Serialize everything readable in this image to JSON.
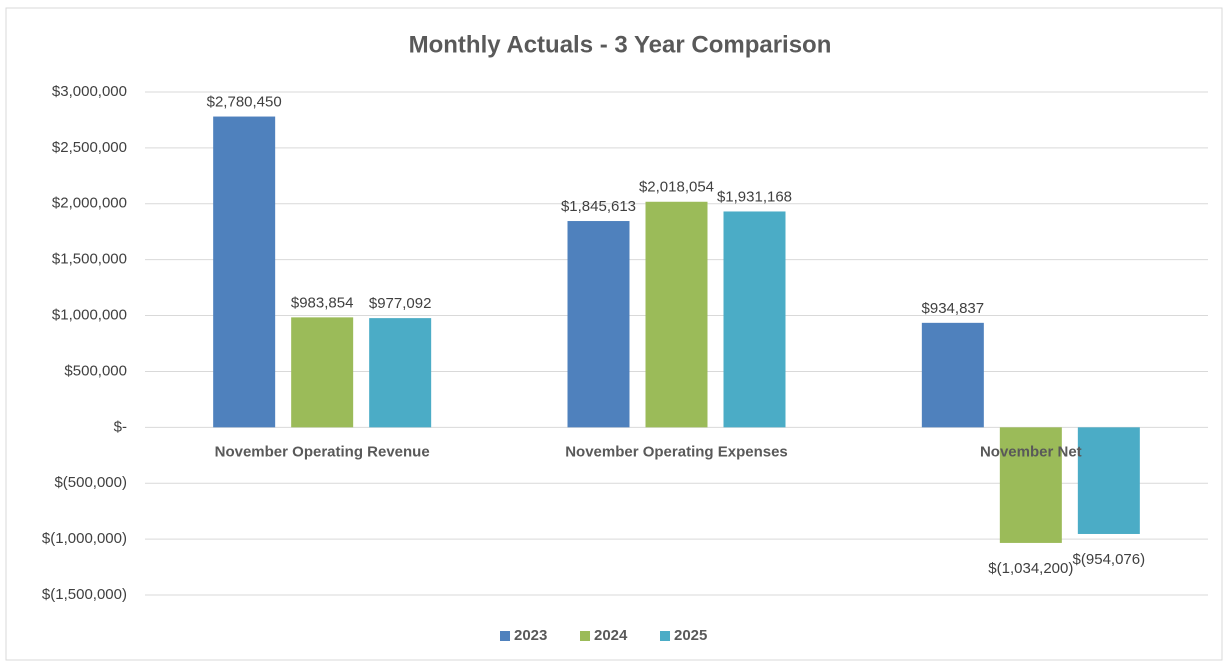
{
  "chart_data": {
    "type": "bar",
    "title": "Monthly Actuals - 3 Year Comparison",
    "categories": [
      "November Operating Revenue",
      "November Operating Expenses",
      "November Net"
    ],
    "series": [
      {
        "name": "2023",
        "color": "#4f81bd",
        "values": [
          2780450,
          1845613,
          934837
        ],
        "value_labels": [
          "$2,780,450",
          "$1,845,613",
          "$934,837"
        ]
      },
      {
        "name": "2024",
        "color": "#9bbb59",
        "values": [
          983854,
          2018054,
          -1034200
        ],
        "value_labels": [
          "$983,854",
          "$2,018,054",
          "$(1,034,200)"
        ]
      },
      {
        "name": "2025",
        "color": "#4bacc6",
        "values": [
          977092,
          1931168,
          -954076
        ],
        "value_labels": [
          "$977,092",
          "$1,931,168",
          "$(954,076)"
        ]
      }
    ],
    "ylim": [
      -1500000,
      3000000
    ],
    "yticks": [
      {
        "value": -1500000,
        "label": "$(1,500,000)"
      },
      {
        "value": -1000000,
        "label": "$(1,000,000)"
      },
      {
        "value": -500000,
        "label": "$(500,000)"
      },
      {
        "value": 0,
        "label": "$-"
      },
      {
        "value": 500000,
        "label": "$500,000"
      },
      {
        "value": 1000000,
        "label": "$1,000,000"
      },
      {
        "value": 1500000,
        "label": "$1,500,000"
      },
      {
        "value": 2000000,
        "label": "$2,000,000"
      },
      {
        "value": 2500000,
        "label": "$2,500,000"
      },
      {
        "value": 3000000,
        "label": "$3,000,000"
      }
    ],
    "grid": true,
    "legend": "bottom"
  }
}
